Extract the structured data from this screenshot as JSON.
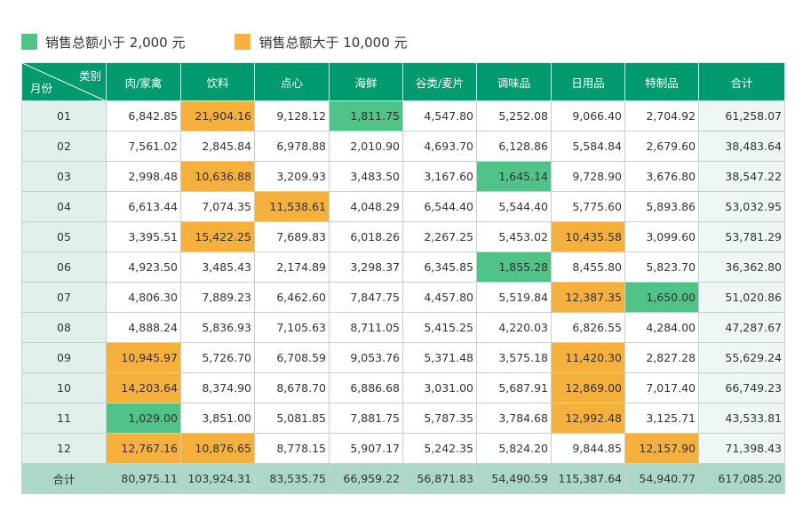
{
  "colors": {
    "header_bg": "#009a6e",
    "month_bg": "#e1f0ea",
    "row_total_bg": "#eef7f3",
    "bottom_total_bg": "#acd9c7",
    "below_color": "#4fc388",
    "above_color": "#f6b03c"
  },
  "legend": {
    "below": {
      "label": "销售总额小于 2,000 元",
      "color": "#4fc388"
    },
    "above": {
      "label": "销售总额大于 10,000 元",
      "color": "#f6b03c"
    }
  },
  "table": {
    "corner": {
      "top": "类别",
      "bottom": "月份"
    },
    "headers": [
      "肉/家禽",
      "饮料",
      "点心",
      "海鲜",
      "谷类/麦片",
      "调味品",
      "日用品",
      "特制品",
      "合计"
    ],
    "rows": [
      {
        "month": "01",
        "cells": [
          {
            "v": "6,842.85",
            "h": ""
          },
          {
            "v": "21,904.16",
            "h": "above"
          },
          {
            "v": "9,128.12",
            "h": ""
          },
          {
            "v": "1,811.75",
            "h": "below"
          },
          {
            "v": "4,547.80",
            "h": ""
          },
          {
            "v": "5,252.08",
            "h": ""
          },
          {
            "v": "9,066.40",
            "h": ""
          },
          {
            "v": "2,704.92",
            "h": ""
          }
        ],
        "total": "61,258.07"
      },
      {
        "month": "02",
        "cells": [
          {
            "v": "7,561.02",
            "h": ""
          },
          {
            "v": "2,845.84",
            "h": ""
          },
          {
            "v": "6,978.88",
            "h": ""
          },
          {
            "v": "2,010.90",
            "h": ""
          },
          {
            "v": "4,693.70",
            "h": ""
          },
          {
            "v": "6,128.86",
            "h": ""
          },
          {
            "v": "5,584.84",
            "h": ""
          },
          {
            "v": "2,679.60",
            "h": ""
          }
        ],
        "total": "38,483.64"
      },
      {
        "month": "03",
        "cells": [
          {
            "v": "2,998.48",
            "h": ""
          },
          {
            "v": "10,636.88",
            "h": "above"
          },
          {
            "v": "3,209.93",
            "h": ""
          },
          {
            "v": "3,483.50",
            "h": ""
          },
          {
            "v": "3,167.60",
            "h": ""
          },
          {
            "v": "1,645.14",
            "h": "below"
          },
          {
            "v": "9,728.90",
            "h": ""
          },
          {
            "v": "3,676.80",
            "h": ""
          }
        ],
        "total": "38,547.22"
      },
      {
        "month": "04",
        "cells": [
          {
            "v": "6,613.44",
            "h": ""
          },
          {
            "v": "7,074.35",
            "h": ""
          },
          {
            "v": "11,538.61",
            "h": "above"
          },
          {
            "v": "4,048.29",
            "h": ""
          },
          {
            "v": "6,544.40",
            "h": ""
          },
          {
            "v": "5,544.40",
            "h": ""
          },
          {
            "v": "5,775.60",
            "h": ""
          },
          {
            "v": "5,893.86",
            "h": ""
          }
        ],
        "total": "53,032.95"
      },
      {
        "month": "05",
        "cells": [
          {
            "v": "3,395.51",
            "h": ""
          },
          {
            "v": "15,422.25",
            "h": "above"
          },
          {
            "v": "7,689.83",
            "h": ""
          },
          {
            "v": "6,018.26",
            "h": ""
          },
          {
            "v": "2,267.25",
            "h": ""
          },
          {
            "v": "5,453.02",
            "h": ""
          },
          {
            "v": "10,435.58",
            "h": "above"
          },
          {
            "v": "3,099.60",
            "h": ""
          }
        ],
        "total": "53,781.29"
      },
      {
        "month": "06",
        "cells": [
          {
            "v": "4,923.50",
            "h": ""
          },
          {
            "v": "3,485.43",
            "h": ""
          },
          {
            "v": "2,174.89",
            "h": ""
          },
          {
            "v": "3,298.37",
            "h": ""
          },
          {
            "v": "6,345.85",
            "h": ""
          },
          {
            "v": "1,855.28",
            "h": "below"
          },
          {
            "v": "8,455.80",
            "h": ""
          },
          {
            "v": "5,823.70",
            "h": ""
          }
        ],
        "total": "36,362.80"
      },
      {
        "month": "07",
        "cells": [
          {
            "v": "4,806.30",
            "h": ""
          },
          {
            "v": "7,889.23",
            "h": ""
          },
          {
            "v": "6,462.60",
            "h": ""
          },
          {
            "v": "7,847.75",
            "h": ""
          },
          {
            "v": "4,457.80",
            "h": ""
          },
          {
            "v": "5,519.84",
            "h": ""
          },
          {
            "v": "12,387.35",
            "h": "above"
          },
          {
            "v": "1,650.00",
            "h": "below"
          }
        ],
        "total": "51,020.86"
      },
      {
        "month": "08",
        "cells": [
          {
            "v": "4,888.24",
            "h": ""
          },
          {
            "v": "5,836.93",
            "h": ""
          },
          {
            "v": "7,105.63",
            "h": ""
          },
          {
            "v": "8,711.05",
            "h": ""
          },
          {
            "v": "5,415.25",
            "h": ""
          },
          {
            "v": "4,220.03",
            "h": ""
          },
          {
            "v": "6,826.55",
            "h": ""
          },
          {
            "v": "4,284.00",
            "h": ""
          }
        ],
        "total": "47,287.67"
      },
      {
        "month": "09",
        "cells": [
          {
            "v": "10,945.97",
            "h": "above"
          },
          {
            "v": "5,726.70",
            "h": ""
          },
          {
            "v": "6,708.59",
            "h": ""
          },
          {
            "v": "9,053.76",
            "h": ""
          },
          {
            "v": "5,371.48",
            "h": ""
          },
          {
            "v": "3,575.18",
            "h": ""
          },
          {
            "v": "11,420.30",
            "h": "above"
          },
          {
            "v": "2,827.28",
            "h": ""
          }
        ],
        "total": "55,629.24"
      },
      {
        "month": "10",
        "cells": [
          {
            "v": "14,203.64",
            "h": "above"
          },
          {
            "v": "8,374.90",
            "h": ""
          },
          {
            "v": "8,678.70",
            "h": ""
          },
          {
            "v": "6,886.68",
            "h": ""
          },
          {
            "v": "3,031.00",
            "h": ""
          },
          {
            "v": "5,687.91",
            "h": ""
          },
          {
            "v": "12,869.00",
            "h": "above"
          },
          {
            "v": "7,017.40",
            "h": ""
          }
        ],
        "total": "66,749.23"
      },
      {
        "month": "11",
        "cells": [
          {
            "v": "1,029.00",
            "h": "below"
          },
          {
            "v": "3,851.00",
            "h": ""
          },
          {
            "v": "5,081.85",
            "h": ""
          },
          {
            "v": "7,881.75",
            "h": ""
          },
          {
            "v": "5,787.35",
            "h": ""
          },
          {
            "v": "3,784.68",
            "h": ""
          },
          {
            "v": "12,992.48",
            "h": "above"
          },
          {
            "v": "3,125.71",
            "h": ""
          }
        ],
        "total": "43,533.81"
      },
      {
        "month": "12",
        "cells": [
          {
            "v": "12,767.16",
            "h": "above"
          },
          {
            "v": "10,876.65",
            "h": "above"
          },
          {
            "v": "8,778.15",
            "h": ""
          },
          {
            "v": "5,907.17",
            "h": ""
          },
          {
            "v": "5,242.35",
            "h": ""
          },
          {
            "v": "5,824.20",
            "h": ""
          },
          {
            "v": "9,844.85",
            "h": ""
          },
          {
            "v": "12,157.90",
            "h": "above"
          }
        ],
        "total": "71,398.43"
      }
    ],
    "totals": {
      "label": "合计",
      "values": [
        "80,975.11",
        "103,924.31",
        "83,535.75",
        "66,959.22",
        "56,871.83",
        "54,490.59",
        "115,387.64",
        "54,940.77",
        "617,085.20"
      ]
    }
  }
}
